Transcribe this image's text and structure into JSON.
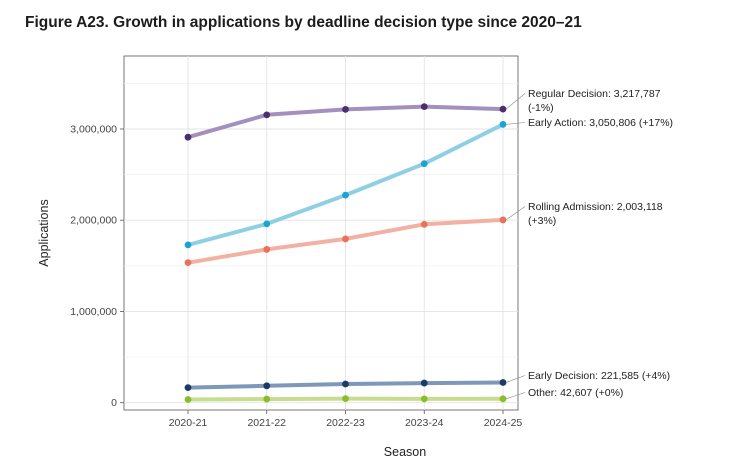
{
  "chart_data": {
    "type": "line",
    "title": "Figure A23. Growth in applications by deadline decision type since 2020–21",
    "xlabel": "Season",
    "ylabel": "Applications",
    "categories": [
      "2020-21",
      "2021-22",
      "2022-23",
      "2023-24",
      "2024-25"
    ],
    "ylim": [
      -80000,
      3800000
    ],
    "y_ticks": [
      0,
      1000000,
      2000000,
      3000000
    ],
    "y_tick_labels": [
      "0",
      "1,000,000",
      "2,000,000",
      "3,000,000"
    ],
    "grid": true,
    "legend": "direct labels at right end of each line",
    "series": [
      {
        "name": "Regular Decision",
        "color": "#a390bf",
        "marker": "#4a2e6e",
        "values": [
          2910000,
          3155000,
          3215000,
          3245000,
          3217787
        ],
        "label_lines": [
          "Regular Decision: 3,217,787",
          "(-1%)"
        ]
      },
      {
        "name": "Early Action",
        "color": "#8fcfe3",
        "marker": "#1aa4cf",
        "values": [
          1730000,
          1960000,
          2275000,
          2620000,
          3050806
        ],
        "label_lines": [
          "Early Action: 3,050,806 (+17%)"
        ]
      },
      {
        "name": "Rolling Admission",
        "color": "#f2b1a2",
        "marker": "#e8735c",
        "values": [
          1535000,
          1680000,
          1795000,
          1955000,
          2003118
        ],
        "label_lines": [
          "Rolling Admission: 2,003,118",
          "(+3%)"
        ]
      },
      {
        "name": "Early Decision",
        "color": "#7d98b8",
        "marker": "#1c3a66",
        "values": [
          165000,
          185000,
          205000,
          215000,
          221585
        ],
        "label_lines": [
          "Early Decision: 221,585 (+4%)"
        ]
      },
      {
        "name": "Other",
        "color": "#c6dc8e",
        "marker": "#8bbd2a",
        "values": [
          35000,
          40000,
          45000,
          42000,
          42607
        ],
        "label_lines": [
          "Other: 42,607 (+0%)"
        ]
      }
    ]
  }
}
